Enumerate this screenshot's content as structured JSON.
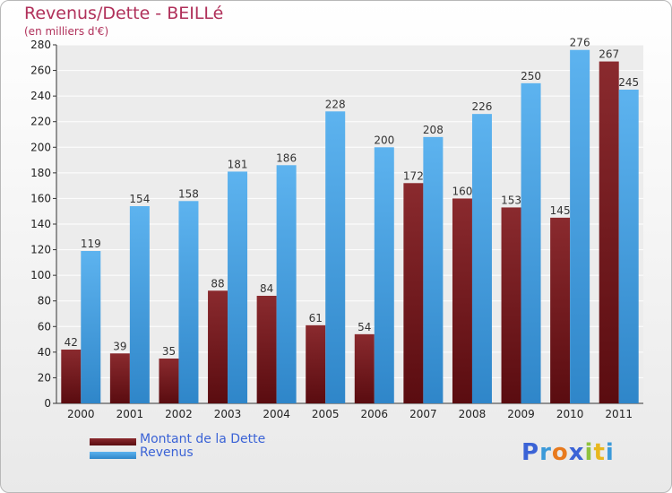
{
  "chart_data": {
    "type": "bar",
    "title": "Revenus/Dette - BEILLé",
    "subtitle": "(en milliers d'€)",
    "categories": [
      "2000",
      "2001",
      "2002",
      "2003",
      "2004",
      "2005",
      "2006",
      "2007",
      "2008",
      "2009",
      "2010",
      "2011"
    ],
    "series": [
      {
        "name": "Montant de la Dette",
        "color": "#7a1a1d",
        "values": [
          42,
          39,
          35,
          88,
          84,
          61,
          54,
          172,
          160,
          153,
          145,
          267
        ]
      },
      {
        "name": "Revenus",
        "color": "#4aa6e8",
        "values": [
          119,
          154,
          158,
          181,
          186,
          228,
          200,
          208,
          226,
          250,
          276,
          245
        ]
      }
    ],
    "ylim": [
      0,
      280
    ],
    "yticks": [
      0,
      20,
      40,
      60,
      80,
      100,
      120,
      140,
      160,
      180,
      200,
      220,
      240,
      260,
      280
    ],
    "grid": true,
    "legend_position": "bottom-left",
    "xlabel": "",
    "ylabel": ""
  },
  "logo": {
    "text": "Proxiti",
    "letters": [
      "P",
      "r",
      "o",
      "x",
      "i",
      "t",
      "i"
    ],
    "colors": [
      "#3b63d6",
      "#3b9ad9",
      "#e87a1e",
      "#3b63d6",
      "#8fc23e",
      "#e8b71e",
      "#3b9ad9"
    ]
  }
}
